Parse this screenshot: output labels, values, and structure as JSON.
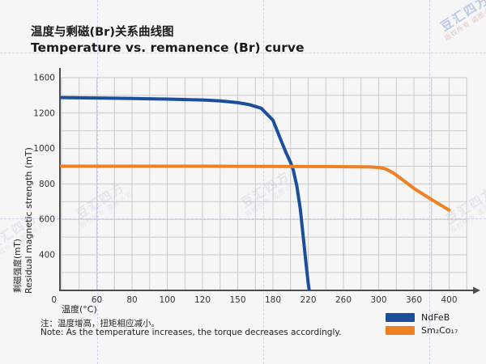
{
  "titles": {
    "zh": "温度与剩磁(Br)关系曲线图",
    "en": "Temperature vs. remanence (Br) curve"
  },
  "note": {
    "zh": "注：温度增高，扭矩相应减小。",
    "en": "Note: As the temperature increases, the torque decreases accordingly."
  },
  "watermark": {
    "main": "豆汇四方",
    "sub": "版权所有 盗图必究"
  },
  "chart_data": {
    "type": "line",
    "xlabel": "温度(°C)",
    "ylabel_zh": "剩磁强度(mT)",
    "ylabel_en": "Residual magnetic strength (mT)",
    "x_ticks": [
      0,
      60,
      80,
      100,
      120,
      150,
      180,
      220,
      260,
      300,
      360,
      400
    ],
    "y_ticks": [
      1600,
      1200,
      1000,
      800,
      600,
      400
    ],
    "origin_label": "0",
    "ylim": [
      0,
      1600
    ],
    "grid": true,
    "legend_position": "bottom-right",
    "colors": {
      "grid": "#c9c9c9",
      "axis": "#4d4d4d",
      "tick_text": "#333333"
    },
    "legend": [
      {
        "name": "NdFeB",
        "color": "#1b4f9e"
      },
      {
        "name": "Sm₂Co₁₇",
        "color": "#f08122"
      }
    ],
    "series": [
      {
        "name": "NdFeB",
        "color": "#1b4f9e",
        "points": [
          [
            0,
            1375
          ],
          [
            40,
            1372
          ],
          [
            80,
            1365
          ],
          [
            100,
            1358
          ],
          [
            120,
            1348
          ],
          [
            135,
            1338
          ],
          [
            150,
            1318
          ],
          [
            160,
            1295
          ],
          [
            170,
            1255
          ],
          [
            180,
            1160
          ],
          [
            188,
            1060
          ],
          [
            195,
            975
          ],
          [
            200,
            920
          ],
          [
            203,
            880
          ],
          [
            207,
            790
          ],
          [
            211,
            660
          ],
          [
            215,
            470
          ],
          [
            218,
            260
          ],
          [
            220,
            80
          ],
          [
            221,
            10
          ]
        ]
      },
      {
        "name": "Sm2Co17",
        "color": "#f08122",
        "points": [
          [
            0,
            900
          ],
          [
            60,
            900
          ],
          [
            120,
            900
          ],
          [
            180,
            899
          ],
          [
            240,
            898
          ],
          [
            290,
            896
          ],
          [
            300,
            893
          ],
          [
            310,
            887
          ],
          [
            325,
            862
          ],
          [
            340,
            825
          ],
          [
            360,
            775
          ],
          [
            380,
            712
          ],
          [
            400,
            652
          ]
        ]
      }
    ]
  }
}
